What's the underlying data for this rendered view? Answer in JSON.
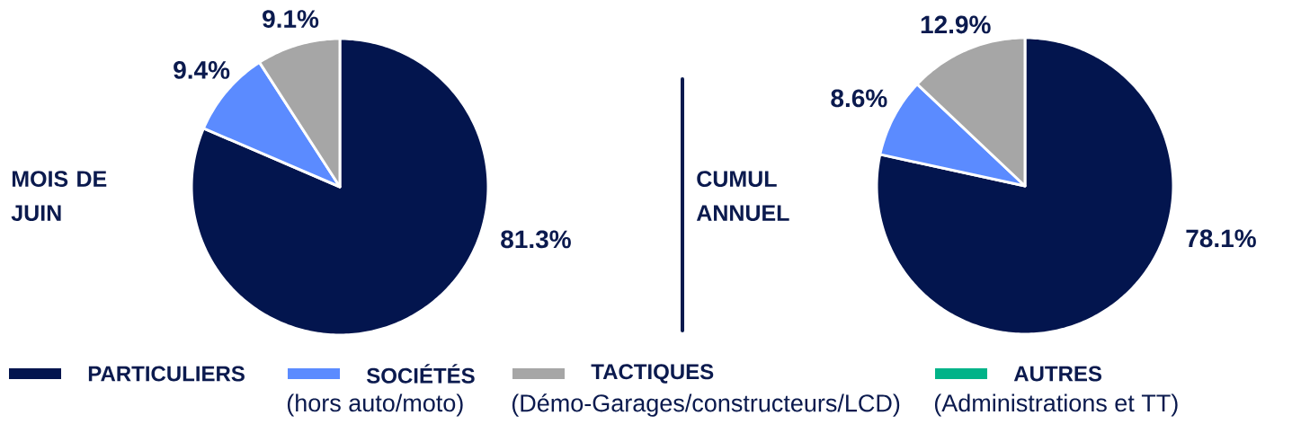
{
  "chart_data": {
    "type": "pie",
    "categories": [
      "PARTICULIERS",
      "SOCIÉTÉS",
      "TACTIQUES",
      "AUTRES"
    ],
    "colors": [
      "#03154e",
      "#5b8bff",
      "#a6a6a6",
      "#00b388"
    ],
    "series": [
      {
        "name": "MOIS DE JUIN",
        "values": [
          81.3,
          9.4,
          9.1,
          null
        ],
        "value_labels": [
          "81.3%",
          "9.4%",
          "9.1%",
          null
        ]
      },
      {
        "name": "CUMUL ANNUEL",
        "values": [
          78.1,
          8.6,
          12.9,
          null
        ],
        "value_labels": [
          "78.1%",
          "8.6%",
          "12.9%",
          null
        ]
      }
    ],
    "legend": "bottom",
    "annotations": [
      "(hors auto/moto)",
      "(Démo-Garages/constructeurs/LCD)",
      "(Administrations et TT)"
    ]
  }
}
